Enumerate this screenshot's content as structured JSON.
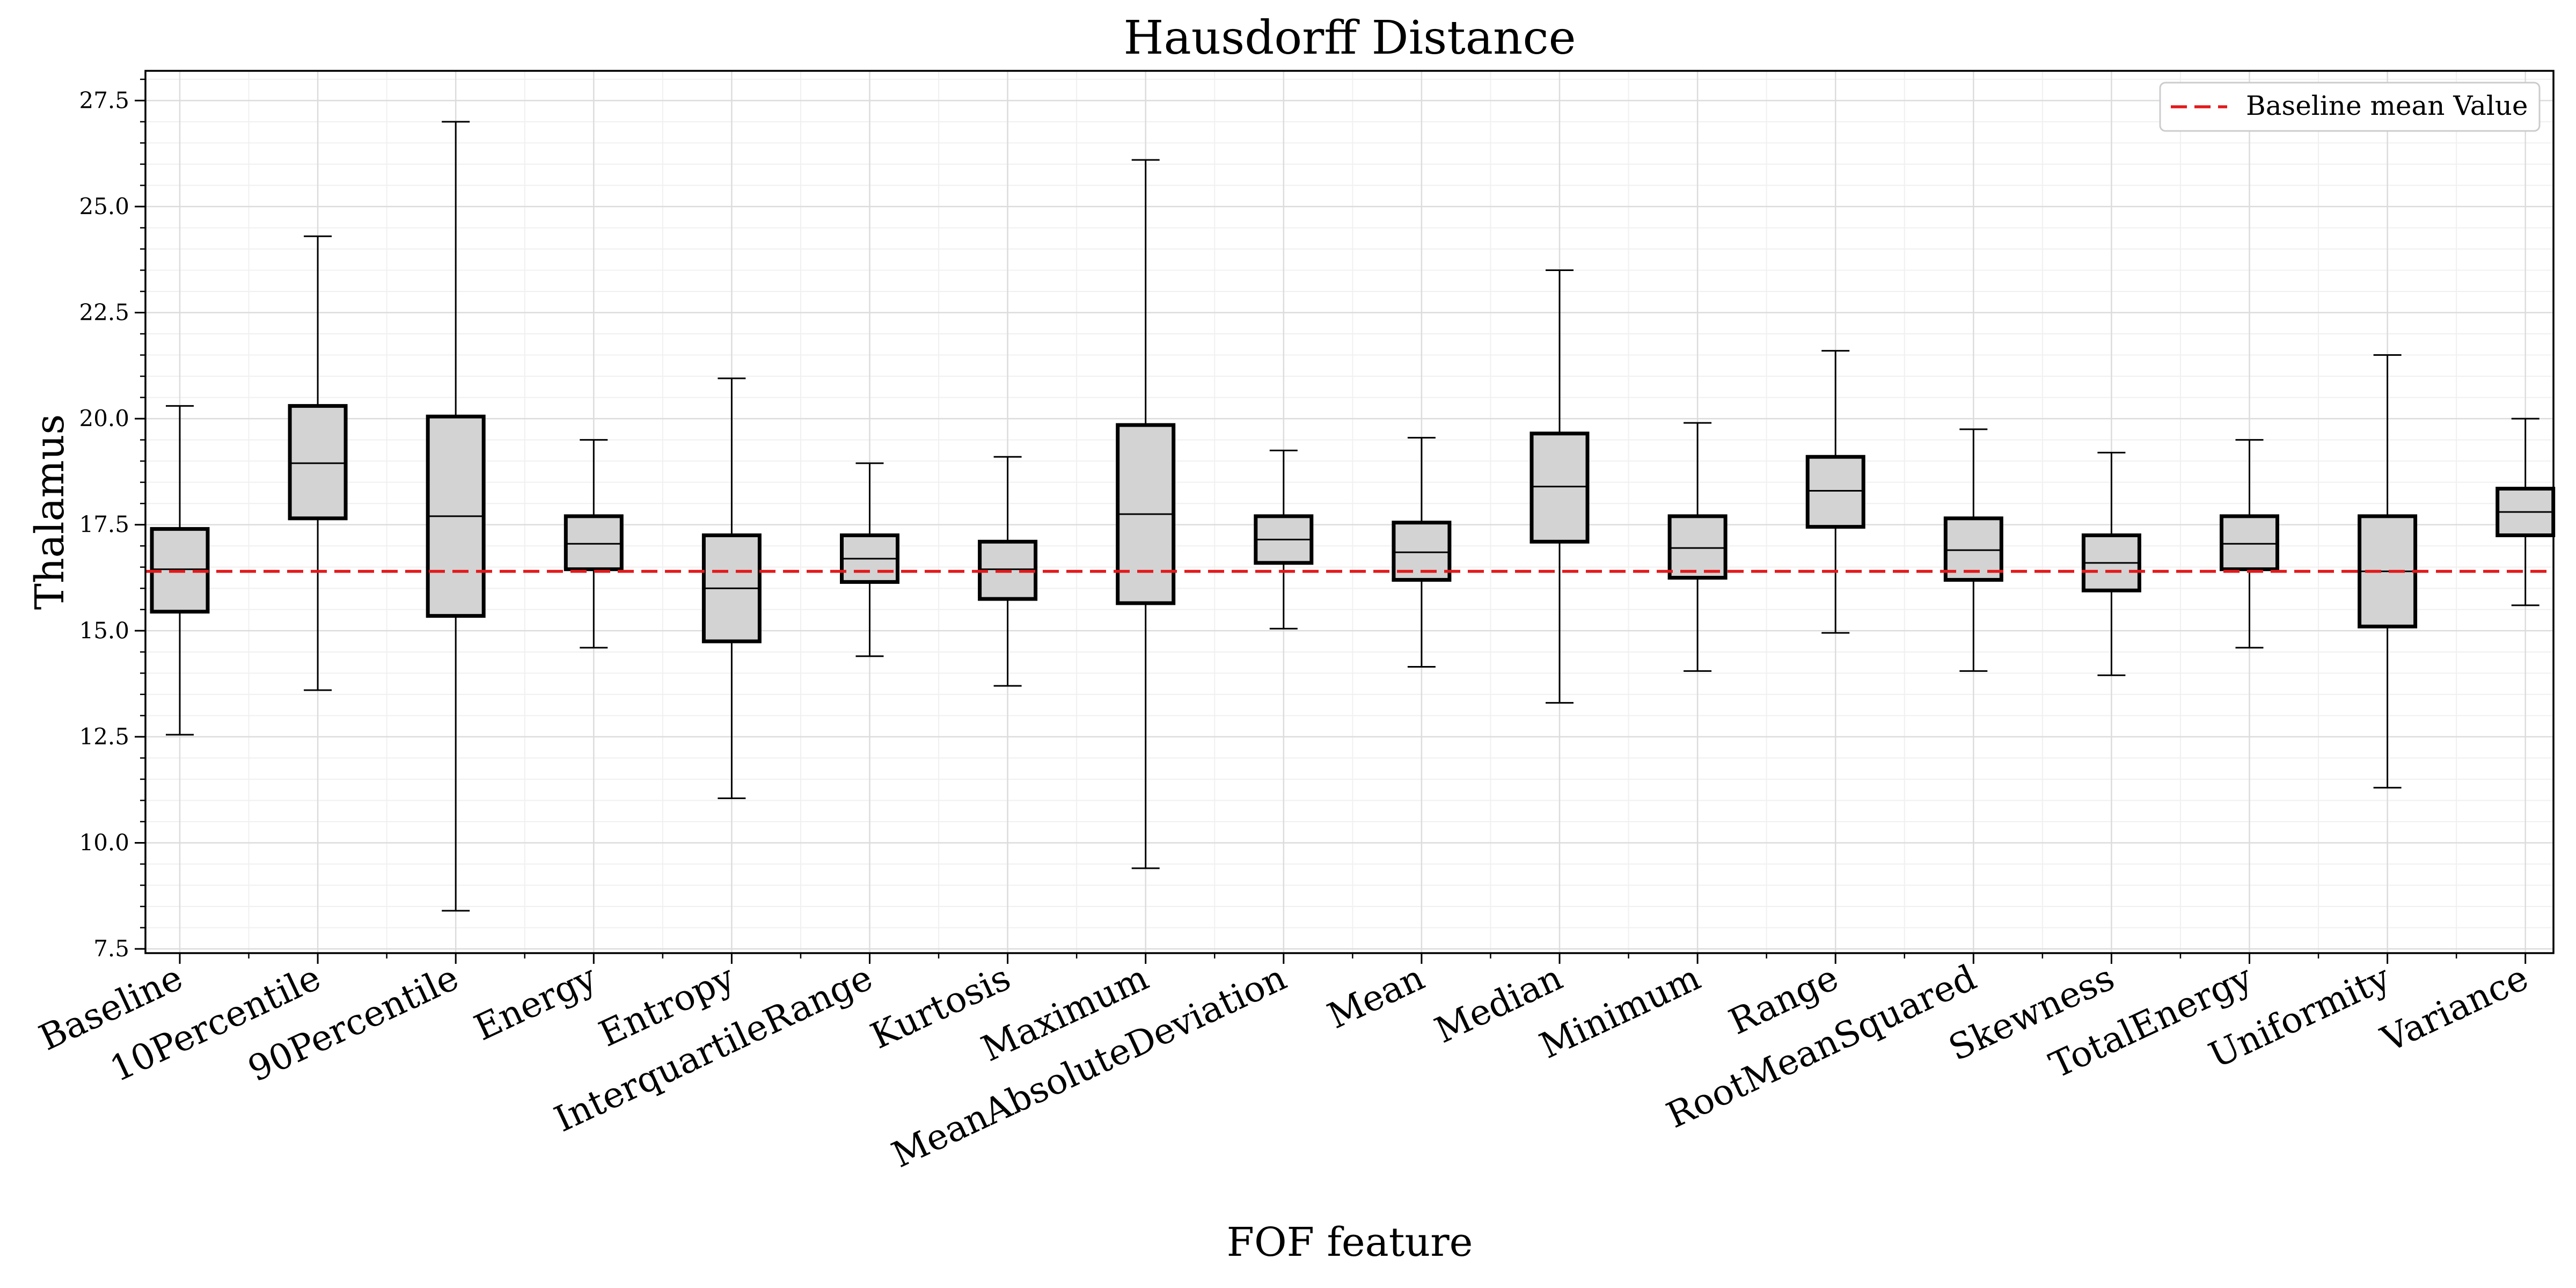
{
  "chart_data": {
    "type": "box",
    "title": "Hausdorff Distance",
    "xlabel": "FOF feature",
    "ylabel": "Thalamus",
    "ylim": [
      7.4,
      28.2
    ],
    "yticks": [
      7.5,
      10.0,
      12.5,
      15.0,
      17.5,
      20.0,
      22.5,
      25.0,
      27.5
    ],
    "ytick_labels": [
      "7.5",
      "10.0",
      "12.5",
      "15.0",
      "17.5",
      "20.0",
      "22.5",
      "25.0",
      "27.5"
    ],
    "grid": true,
    "legend_position": "top-right",
    "legend": [
      "Baseline mean Value"
    ],
    "baseline_mean": 16.4,
    "baseline_color": "#e31a1c",
    "box_fill": "#d3d3d3",
    "categories": [
      "Baseline",
      "10Percentile",
      "90Percentile",
      "Energy",
      "Entropy",
      "InterquartileRange",
      "Kurtosis",
      "Maximum",
      "MeanAbsoluteDeviation",
      "Mean",
      "Median",
      "Minimum",
      "Range",
      "RootMeanSquared",
      "Skewness",
      "TotalEnergy",
      "Uniformity",
      "Variance"
    ],
    "boxes": [
      {
        "whisker_low": 12.55,
        "q1": 15.45,
        "median": 16.45,
        "q3": 17.4,
        "whisker_high": 20.3
      },
      {
        "whisker_low": 13.6,
        "q1": 17.65,
        "median": 18.95,
        "q3": 20.3,
        "whisker_high": 24.3
      },
      {
        "whisker_low": 8.4,
        "q1": 15.35,
        "median": 17.7,
        "q3": 20.05,
        "whisker_high": 27.0
      },
      {
        "whisker_low": 14.6,
        "q1": 16.45,
        "median": 17.05,
        "q3": 17.7,
        "whisker_high": 19.5
      },
      {
        "whisker_low": 11.05,
        "q1": 14.75,
        "median": 16.0,
        "q3": 17.25,
        "whisker_high": 20.95
      },
      {
        "whisker_low": 14.4,
        "q1": 16.15,
        "median": 16.7,
        "q3": 17.25,
        "whisker_high": 18.95
      },
      {
        "whisker_low": 13.7,
        "q1": 15.75,
        "median": 16.45,
        "q3": 17.1,
        "whisker_high": 19.1
      },
      {
        "whisker_low": 9.4,
        "q1": 15.65,
        "median": 17.75,
        "q3": 19.85,
        "whisker_high": 26.1
      },
      {
        "whisker_low": 15.05,
        "q1": 16.6,
        "median": 17.15,
        "q3": 17.7,
        "whisker_high": 19.25
      },
      {
        "whisker_low": 14.15,
        "q1": 16.2,
        "median": 16.85,
        "q3": 17.55,
        "whisker_high": 19.55
      },
      {
        "whisker_low": 13.3,
        "q1": 17.1,
        "median": 18.4,
        "q3": 19.65,
        "whisker_high": 23.5
      },
      {
        "whisker_low": 14.05,
        "q1": 16.25,
        "median": 16.95,
        "q3": 17.7,
        "whisker_high": 19.9
      },
      {
        "whisker_low": 14.95,
        "q1": 17.45,
        "median": 18.3,
        "q3": 19.1,
        "whisker_high": 21.6
      },
      {
        "whisker_low": 14.05,
        "q1": 16.2,
        "median": 16.9,
        "q3": 17.65,
        "whisker_high": 19.75
      },
      {
        "whisker_low": 13.95,
        "q1": 15.95,
        "median": 16.6,
        "q3": 17.25,
        "whisker_high": 19.2
      },
      {
        "whisker_low": 14.6,
        "q1": 16.45,
        "median": 17.05,
        "q3": 17.7,
        "whisker_high": 19.5
      },
      {
        "whisker_low": 11.3,
        "q1": 15.1,
        "median": 16.4,
        "q3": 17.7,
        "whisker_high": 21.5
      },
      {
        "whisker_low": 15.6,
        "q1": 17.25,
        "median": 17.8,
        "q3": 18.35,
        "whisker_high": 20.0
      }
    ]
  }
}
